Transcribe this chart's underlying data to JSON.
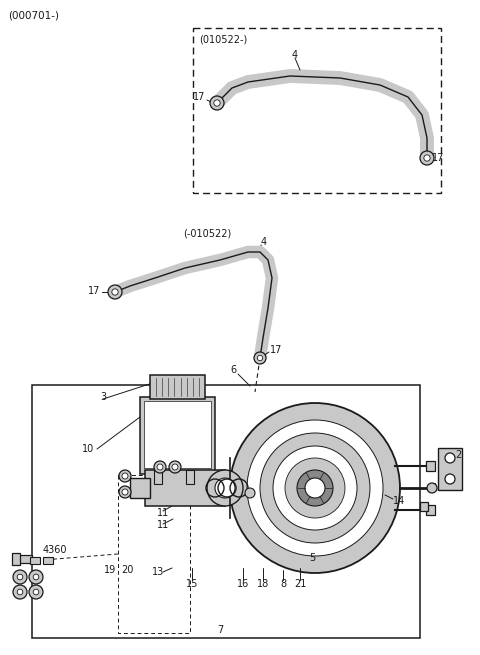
{
  "bg_color": "#ffffff",
  "line_color": "#1a1a1a",
  "gray_fill": "#c8c8c8",
  "dark_fill": "#888888",
  "mid_gray": "#aaaaaa",
  "figsize": [
    4.8,
    6.55
  ],
  "dpi": 100,
  "header": "(000701-)",
  "box1_label": "(010522-)",
  "box2_label": "(-010522)"
}
